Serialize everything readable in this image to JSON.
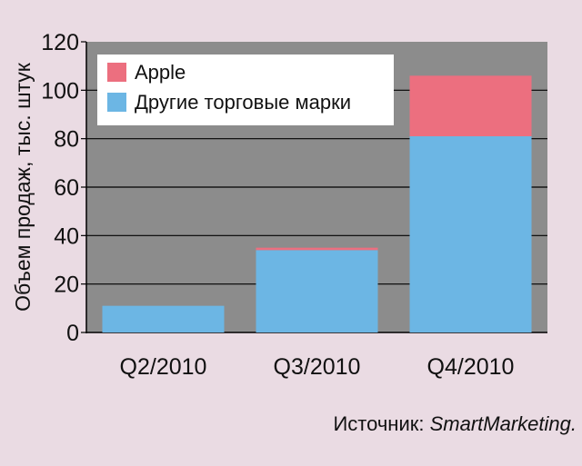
{
  "chart_data": {
    "type": "bar",
    "stacked": true,
    "categories": [
      "Q2/2010",
      "Q3/2010",
      "Q4/2010"
    ],
    "series": [
      {
        "name": "Другие торговые марки",
        "color": "#6cb6e4",
        "values": [
          11,
          34,
          81
        ]
      },
      {
        "name": "Apple",
        "color": "#ec6f7f",
        "values": [
          0,
          1,
          25
        ]
      }
    ],
    "ylabel": "Объем продаж, тыс. штук",
    "xlabel": "",
    "ylim": [
      0,
      120
    ],
    "yticks": [
      "0",
      "20",
      "40",
      "60",
      "80",
      "100",
      "120"
    ],
    "grid": true,
    "legend_position": "top-left",
    "legend_order": [
      "Apple",
      "Другие торговые марки"
    ],
    "plot_background": "#8c8c8c",
    "grid_color": "#000000"
  },
  "source": {
    "prefix": "Источник: ",
    "name": "SmartMarketing."
  }
}
